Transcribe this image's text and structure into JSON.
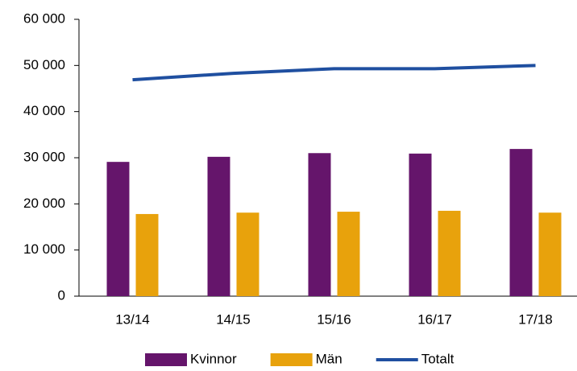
{
  "chart_data": {
    "type": "bar",
    "categories": [
      "13/14",
      "14/15",
      "15/16",
      "16/17",
      "17/18"
    ],
    "series": [
      {
        "name": "Kvinnor",
        "type": "bar",
        "color": "#65156b",
        "values": [
          29100,
          30200,
          31000,
          30900,
          31900
        ]
      },
      {
        "name": "Män",
        "type": "bar",
        "color": "#e8a20c",
        "values": [
          17800,
          18100,
          18300,
          18500,
          18100
        ]
      },
      {
        "name": "Totalt",
        "type": "line",
        "color": "#1f4fa0",
        "values": [
          46900,
          48300,
          49300,
          49300,
          50000
        ]
      }
    ],
    "ylim": [
      0,
      60000
    ],
    "yticks": [
      {
        "value": 0,
        "label": "0"
      },
      {
        "value": 10000,
        "label": "10 000"
      },
      {
        "value": 20000,
        "label": "20 000"
      },
      {
        "value": 30000,
        "label": "30 000"
      },
      {
        "value": 40000,
        "label": "40 000"
      },
      {
        "value": 50000,
        "label": "50 000"
      },
      {
        "value": 60000,
        "label": "60 000"
      }
    ],
    "legend": "bottom"
  }
}
